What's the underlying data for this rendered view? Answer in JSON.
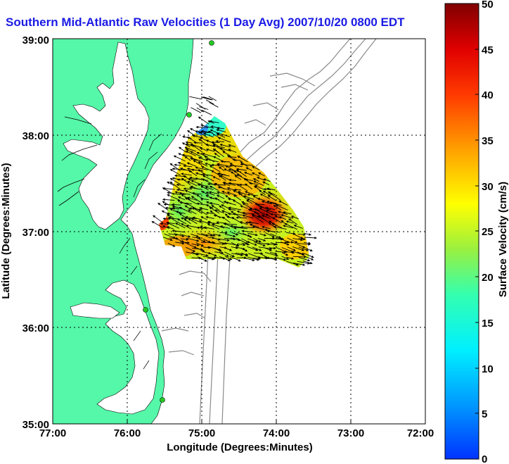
{
  "title": "Southern Mid-Atlantic Raw Velocities (1 Day Avg) 2007/10/20 0800 EDT",
  "colors": {
    "land": "#55f7a8",
    "water": "#ffffff",
    "contour": "#8a8a8a",
    "arrow": "#000000",
    "title": "#1a1ae6",
    "station": "#22cc22"
  },
  "map": {
    "xlabel": "Longitude (Degrees:Minutes)",
    "ylabel": "Latitude (Degrees:Minutes)",
    "x_ticks": [
      "77:00",
      "76:00",
      "75:00",
      "74:00",
      "73:00",
      "72:00"
    ],
    "y_ticks": [
      "39:00",
      "38:00",
      "37:00",
      "36:00",
      "35:00"
    ],
    "lon_range": [
      -77,
      -72
    ],
    "lat_range": [
      35,
      39
    ],
    "grid": true
  },
  "colorbar": {
    "label": "Surface Velocity (cm/s)",
    "ticks": [
      "50",
      "45",
      "40",
      "35",
      "30",
      "25",
      "20",
      "15",
      "10",
      "5",
      "0"
    ],
    "range": [
      0,
      50
    ]
  }
}
